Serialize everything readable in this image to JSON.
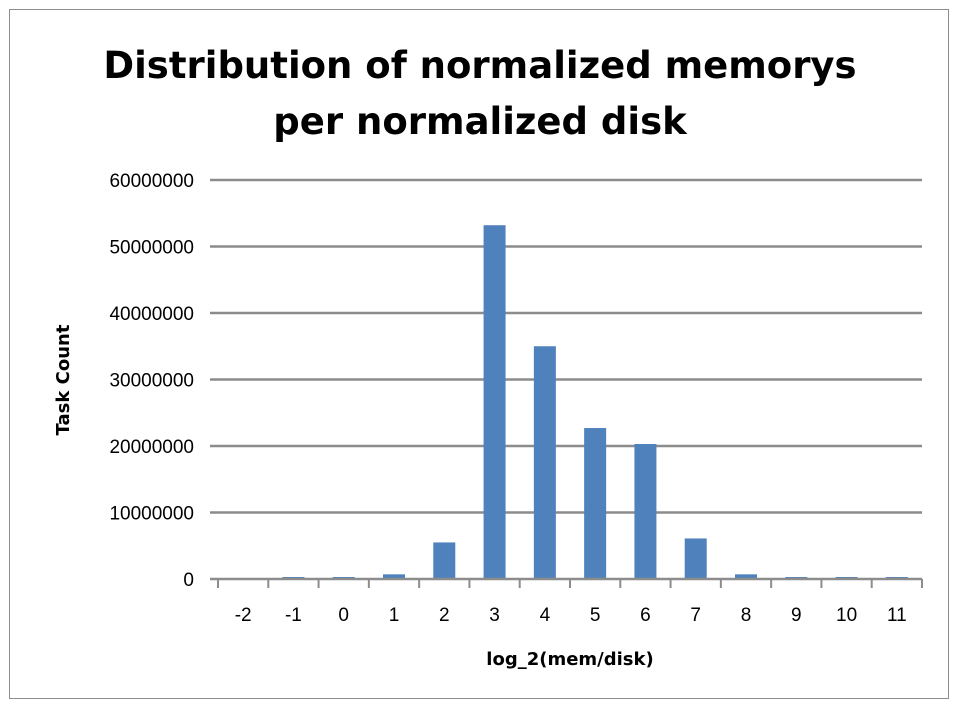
{
  "chart_data": {
    "type": "bar",
    "title_lines": [
      "Distribution of normalized memorys",
      "per normalized disk"
    ],
    "xlabel": "log_2(mem/disk)",
    "ylabel": "Task Count",
    "categories": [
      "-2",
      "-1",
      "0",
      "1",
      "2",
      "3",
      "4",
      "5",
      "6",
      "7",
      "8",
      "9",
      "10",
      "11"
    ],
    "values": [
      0,
      300000,
      300000,
      700000,
      5500000,
      53200000,
      35000000,
      22700000,
      20300000,
      6100000,
      700000,
      300000,
      300000,
      300000
    ],
    "ylim": [
      0,
      60000000
    ],
    "yticks": [
      "0",
      "10000000",
      "20000000",
      "30000000",
      "40000000",
      "50000000",
      "60000000"
    ],
    "grid": true,
    "legend": "none",
    "bar_color": "#4f81bd",
    "grid_color": "#8c8c8c"
  }
}
